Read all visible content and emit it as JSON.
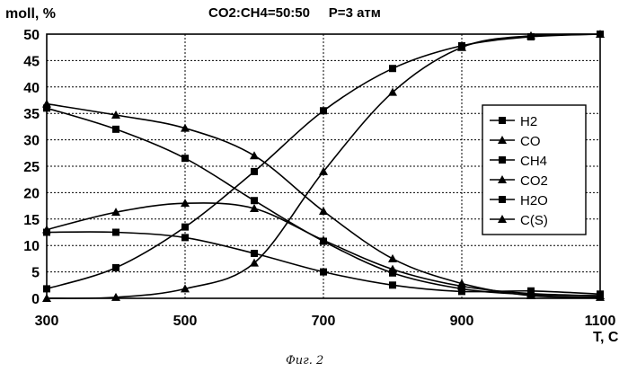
{
  "chart_data": {
    "type": "line",
    "title": "CO2:CH4=50:50     P=3 атм",
    "ylabel": "moll, %",
    "xlabel": "T, C",
    "caption": "Фиг. 2",
    "xlim": [
      300,
      1100
    ],
    "ylim": [
      0,
      50
    ],
    "x_ticks": [
      "300",
      "500",
      "700",
      "900",
      "1100"
    ],
    "y_ticks": [
      "0",
      "5",
      "10",
      "15",
      "20",
      "25",
      "30",
      "35",
      "40",
      "45",
      "50"
    ],
    "grid": true,
    "legend_position": "right",
    "x": [
      300,
      400,
      500,
      600,
      700,
      800,
      900,
      1000,
      1100
    ],
    "series": [
      {
        "name": "H2",
        "marker": "square",
        "values": [
          1.8,
          5.8,
          13.5,
          24.0,
          35.5,
          43.5,
          47.8,
          49.5,
          50.0
        ]
      },
      {
        "name": "CO",
        "marker": "triangle",
        "values": [
          0.0,
          0.2,
          1.8,
          6.7,
          24.0,
          39.0,
          47.5,
          49.7,
          50.0
        ]
      },
      {
        "name": "CH4",
        "marker": "square",
        "values": [
          36.0,
          32.0,
          26.5,
          18.5,
          10.8,
          4.8,
          1.8,
          0.7,
          0.5
        ]
      },
      {
        "name": "CO2",
        "marker": "triangle",
        "values": [
          13.0,
          16.3,
          18.0,
          17.0,
          11.0,
          5.5,
          2.3,
          0.9,
          0.5
        ]
      },
      {
        "name": "H2O",
        "marker": "square",
        "values": [
          12.5,
          12.5,
          11.5,
          8.5,
          5.0,
          2.5,
          1.3,
          1.4,
          0.8
        ]
      },
      {
        "name": "C(S)",
        "marker": "triangle",
        "values": [
          36.8,
          34.7,
          32.2,
          27.0,
          16.5,
          7.5,
          2.8,
          0.5,
          0.2
        ]
      }
    ]
  }
}
